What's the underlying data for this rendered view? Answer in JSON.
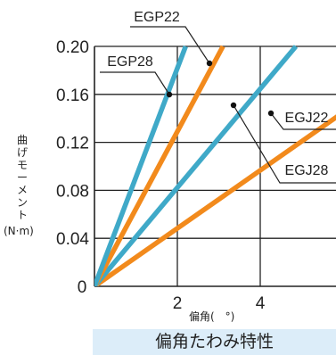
{
  "chart_data": {
    "type": "line",
    "title": "偏角たわみ特性",
    "xlabel": "偏角(　°)",
    "ylabel": "曲げモーメント",
    "ylabel_unit": "(N·m)",
    "xlim": [
      0,
      6
    ],
    "ylim": [
      0,
      0.2
    ],
    "x_ticks": [
      "2",
      "4"
    ],
    "x_tick_values": [
      2,
      4
    ],
    "y_ticks": [
      "0.20",
      "0.16",
      "0.12",
      "0.08",
      "0.04"
    ],
    "y_tick_values": [
      0.2,
      0.16,
      0.12,
      0.08,
      0.04
    ],
    "origin_label": "0",
    "grid": true,
    "colors": {
      "EGP": "#3fa9c8",
      "EGJ": "#f28a1c"
    },
    "series": [
      {
        "name": "EGP22",
        "color_key": "EGP",
        "x": [
          0,
          4.86
        ],
        "y": [
          0,
          0.2
        ],
        "marker": [
          1.85,
          0.161
        ]
      },
      {
        "name": "EGP28",
        "color_key": "EGP",
        "x": [
          0,
          2.2
        ],
        "y": [
          0,
          0.2
        ],
        "marker": [
          2.86,
          0.186
        ]
      },
      {
        "name": "EGJ22",
        "color_key": "EGJ",
        "x": [
          0,
          6.0
        ],
        "y": [
          0,
          0.145
        ],
        "marker": [
          4.47,
          0.148
        ]
      },
      {
        "name": "EGJ28",
        "color_key": "EGJ",
        "x": [
          0,
          3.1
        ],
        "y": [
          0,
          0.2
        ],
        "marker": [
          3.44,
          0.155
        ]
      }
    ]
  }
}
